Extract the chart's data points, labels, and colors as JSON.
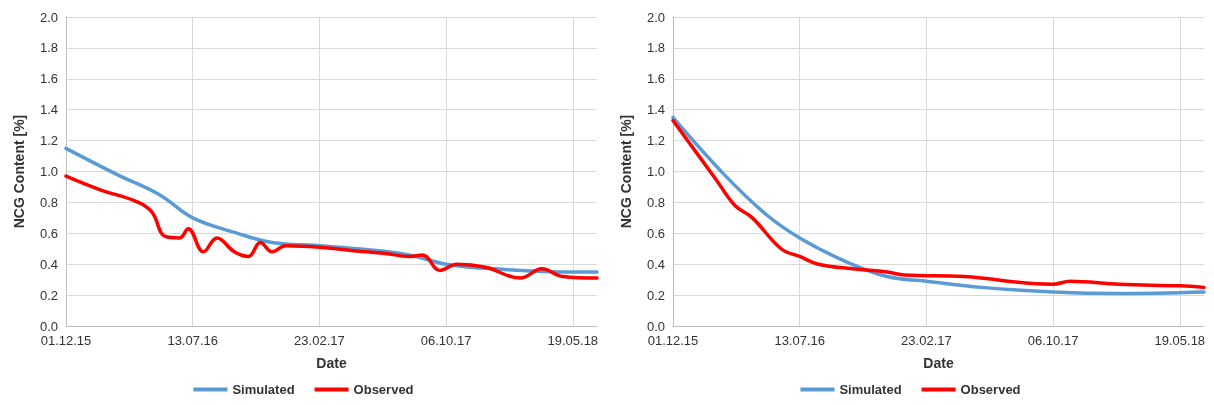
{
  "chart_data": [
    {
      "type": "line",
      "xlabel": "Date",
      "ylabel": "NCG Content [%]",
      "xlim": [
        "2015-12-01",
        "2018-07-01"
      ],
      "xticks": [
        {
          "value": "2015-12-01",
          "label": "01.12.15"
        },
        {
          "value": "2016-07-13",
          "label": "13.07.16"
        },
        {
          "value": "2017-02-23",
          "label": "23.02.17"
        },
        {
          "value": "2017-10-06",
          "label": "06.10.17"
        },
        {
          "value": "2018-05-19",
          "label": "19.05.18"
        }
      ],
      "ylim": [
        0,
        2
      ],
      "yticks": [
        {
          "value": 0,
          "label": "0.0"
        },
        {
          "value": 0.2,
          "label": "0.2"
        },
        {
          "value": 0.4,
          "label": "0.4"
        },
        {
          "value": 0.6,
          "label": "0.6"
        },
        {
          "value": 0.8,
          "label": "0.8"
        },
        {
          "value": 1,
          "label": "1.0"
        },
        {
          "value": 1.2,
          "label": "1.2"
        },
        {
          "value": 1.4,
          "label": "1.4"
        },
        {
          "value": 1.6,
          "label": "1.6"
        },
        {
          "value": 1.8,
          "label": "1.8"
        },
        {
          "value": 2,
          "label": "2.0"
        }
      ],
      "grid": true,
      "legend": "bottom",
      "marker": "none",
      "line_style": "solid",
      "series": [
        {
          "name": "Simulated",
          "color": "#5b9bd5",
          "x": [
            "2015-12-01",
            "2016-03-01",
            "2016-05-15",
            "2016-07-13",
            "2016-10-01",
            "2016-12-01",
            "2017-02-23",
            "2017-05-01",
            "2017-08-01",
            "2017-10-06",
            "2018-01-01",
            "2018-05-19",
            "2018-07-01"
          ],
          "values": [
            1.15,
            0.98,
            0.85,
            0.7,
            0.6,
            0.54,
            0.52,
            0.5,
            0.46,
            0.4,
            0.37,
            0.35,
            0.35
          ]
        },
        {
          "name": "Observed",
          "color": "#ff0000",
          "x": [
            "2015-12-01",
            "2016-02-01",
            "2016-04-01",
            "2016-05-01",
            "2016-05-25",
            "2016-06-20",
            "2016-07-05",
            "2016-08-01",
            "2016-08-25",
            "2016-09-25",
            "2016-10-20",
            "2016-11-10",
            "2016-12-01",
            "2016-12-25",
            "2017-02-23",
            "2017-05-15",
            "2017-06-20",
            "2017-08-01",
            "2017-08-25",
            "2017-09-25",
            "2017-10-25",
            "2017-12-15",
            "2018-02-15",
            "2018-03-25",
            "2018-05-01",
            "2018-07-01"
          ],
          "values": [
            0.97,
            0.88,
            0.81,
            0.74,
            0.58,
            0.57,
            0.63,
            0.48,
            0.57,
            0.48,
            0.45,
            0.54,
            0.48,
            0.52,
            0.51,
            0.48,
            0.47,
            0.45,
            0.46,
            0.36,
            0.4,
            0.38,
            0.31,
            0.37,
            0.32,
            0.31
          ]
        }
      ]
    },
    {
      "type": "line",
      "xlabel": "Date",
      "ylabel": "NCG Content [%]",
      "xlim": [
        "2015-12-01",
        "2018-07-01"
      ],
      "xticks": [
        {
          "value": "2015-12-01",
          "label": "01.12.15"
        },
        {
          "value": "2016-07-13",
          "label": "13.07.16"
        },
        {
          "value": "2017-02-23",
          "label": "23.02.17"
        },
        {
          "value": "2017-10-06",
          "label": "06.10.17"
        },
        {
          "value": "2018-05-19",
          "label": "19.05.18"
        }
      ],
      "ylim": [
        0,
        2
      ],
      "yticks": [
        {
          "value": 0,
          "label": "0.0"
        },
        {
          "value": 0.2,
          "label": "0.2"
        },
        {
          "value": 0.4,
          "label": "0.4"
        },
        {
          "value": 0.6,
          "label": "0.6"
        },
        {
          "value": 0.8,
          "label": "0.8"
        },
        {
          "value": 1,
          "label": "1.0"
        },
        {
          "value": 1.2,
          "label": "1.2"
        },
        {
          "value": 1.4,
          "label": "1.4"
        },
        {
          "value": 1.6,
          "label": "1.6"
        },
        {
          "value": 1.8,
          "label": "1.8"
        },
        {
          "value": 2,
          "label": "2.0"
        }
      ],
      "grid": true,
      "legend": "bottom",
      "marker": "none",
      "line_style": "solid",
      "series": [
        {
          "name": "Simulated",
          "color": "#5b9bd5",
          "x": [
            "2015-12-01",
            "2016-03-01",
            "2016-05-15",
            "2016-07-13",
            "2016-10-01",
            "2016-12-15",
            "2017-02-23",
            "2017-06-01",
            "2017-10-06",
            "2018-02-01",
            "2018-07-01"
          ],
          "values": [
            1.35,
            0.98,
            0.72,
            0.57,
            0.42,
            0.32,
            0.29,
            0.25,
            0.22,
            0.21,
            0.22
          ]
        },
        {
          "name": "Observed",
          "color": "#ff0000",
          "x": [
            "2015-12-01",
            "2016-02-15",
            "2016-03-20",
            "2016-04-20",
            "2016-06-10",
            "2016-07-13",
            "2016-08-15",
            "2016-10-15",
            "2016-12-15",
            "2017-01-15",
            "2017-05-01",
            "2017-10-06",
            "2017-11-05",
            "2018-02-01",
            "2018-05-19",
            "2018-07-01"
          ],
          "values": [
            1.33,
            0.95,
            0.78,
            0.7,
            0.5,
            0.45,
            0.4,
            0.37,
            0.35,
            0.33,
            0.32,
            0.27,
            0.29,
            0.27,
            0.26,
            0.25
          ]
        }
      ]
    }
  ]
}
